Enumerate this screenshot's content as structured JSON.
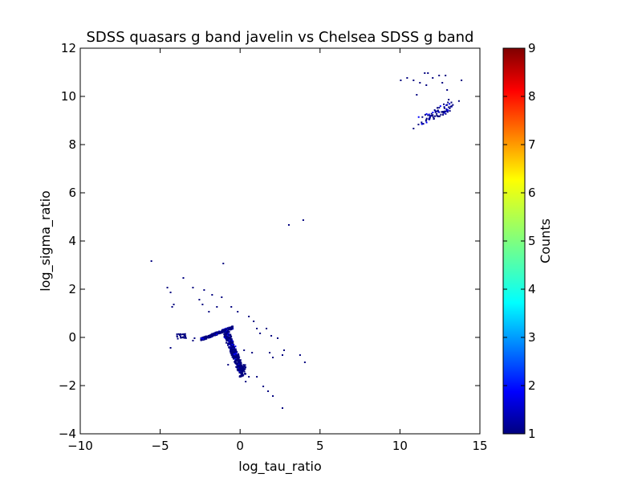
{
  "chart_data": {
    "type": "heatmap",
    "title": "SDSS quasars g band javelin vs Chelsea SDSS g band",
    "xlabel": "log_tau_ratio",
    "ylabel": "log_sigma_ratio",
    "xlim": [
      -10,
      15
    ],
    "ylim": [
      -4,
      12
    ],
    "xticks": [
      -10,
      -5,
      0,
      5,
      10,
      15
    ],
    "yticks": [
      -4,
      -2,
      0,
      2,
      4,
      6,
      8,
      10,
      12
    ],
    "xtick_labels": [
      "−10",
      "−5",
      "0",
      "5",
      "10",
      "15"
    ],
    "ytick_labels": [
      "−4",
      "−2",
      "0",
      "2",
      "4",
      "6",
      "8",
      "10",
      "12"
    ],
    "grid": false,
    "colormap": "jet",
    "colorbar": {
      "label": "Counts",
      "range": [
        1,
        9
      ],
      "ticks": [
        1,
        2,
        3,
        4,
        5,
        6,
        7,
        8,
        9
      ],
      "tick_labels": [
        "1",
        "2",
        "3",
        "4",
        "5",
        "6",
        "7",
        "8",
        "9"
      ]
    },
    "dense_regions": [
      {
        "name": "main-curve",
        "x_range": [
          -2.5,
          0.3
        ],
        "y_range": [
          -1.7,
          0.5
        ]
      },
      {
        "name": "left-clump",
        "x_range": [
          -4.0,
          -3.4
        ],
        "y_range": [
          -0.1,
          0.2
        ]
      },
      {
        "name": "upper-right-clump",
        "x_range": [
          10.5,
          13.5
        ],
        "y_range": [
          8.7,
          11.0
        ]
      }
    ],
    "scatter_points": [
      [
        -5.6,
        3.2
      ],
      [
        -4.6,
        2.1
      ],
      [
        -4.4,
        1.9
      ],
      [
        -4.2,
        1.4
      ],
      [
        -4.3,
        1.3
      ],
      [
        -3.6,
        2.5
      ],
      [
        -3.0,
        2.1
      ],
      [
        -2.6,
        1.6
      ],
      [
        -2.3,
        2.0
      ],
      [
        -1.8,
        1.8
      ],
      [
        -1.2,
        1.7
      ],
      [
        -1.1,
        3.1
      ],
      [
        -2.4,
        1.4
      ],
      [
        -2.0,
        1.1
      ],
      [
        -1.5,
        1.3
      ],
      [
        -0.6,
        1.3
      ],
      [
        -0.2,
        1.1
      ],
      [
        0.5,
        0.9
      ],
      [
        0.8,
        0.7
      ],
      [
        1.0,
        0.4
      ],
      [
        1.2,
        0.2
      ],
      [
        1.6,
        0.4
      ],
      [
        1.9,
        0.1
      ],
      [
        2.3,
        0.0
      ],
      [
        1.8,
        -0.6
      ],
      [
        2.0,
        -0.8
      ],
      [
        2.6,
        -0.7
      ],
      [
        3.7,
        -0.7
      ],
      [
        4.0,
        -1.0
      ],
      [
        2.7,
        -0.5
      ],
      [
        0.5,
        -1.6
      ],
      [
        1.0,
        -1.6
      ],
      [
        1.4,
        -2.0
      ],
      [
        1.7,
        -2.2
      ],
      [
        2.0,
        -2.4
      ],
      [
        2.6,
        -2.9
      ],
      [
        -4.4,
        -0.4
      ],
      [
        -3.0,
        -0.1
      ],
      [
        -2.9,
        0.0
      ],
      [
        3.0,
        4.7
      ],
      [
        3.9,
        4.9
      ],
      [
        0.2,
        -0.5
      ],
      [
        0.7,
        -0.6
      ],
      [
        -0.8,
        -1.1
      ],
      [
        0.3,
        -1.8
      ]
    ],
    "sparse_upper_points": [
      [
        10.0,
        10.7
      ],
      [
        10.4,
        10.8
      ],
      [
        10.8,
        10.7
      ],
      [
        11.2,
        10.6
      ],
      [
        11.6,
        10.5
      ],
      [
        11.5,
        11.0
      ],
      [
        11.7,
        11.0
      ],
      [
        12.4,
        10.9
      ],
      [
        12.8,
        10.9
      ],
      [
        13.8,
        10.7
      ],
      [
        12.0,
        10.8
      ],
      [
        12.6,
        10.6
      ],
      [
        11.0,
        10.1
      ],
      [
        12.9,
        10.3
      ],
      [
        13.0,
        9.9
      ],
      [
        10.8,
        8.7
      ]
    ]
  }
}
